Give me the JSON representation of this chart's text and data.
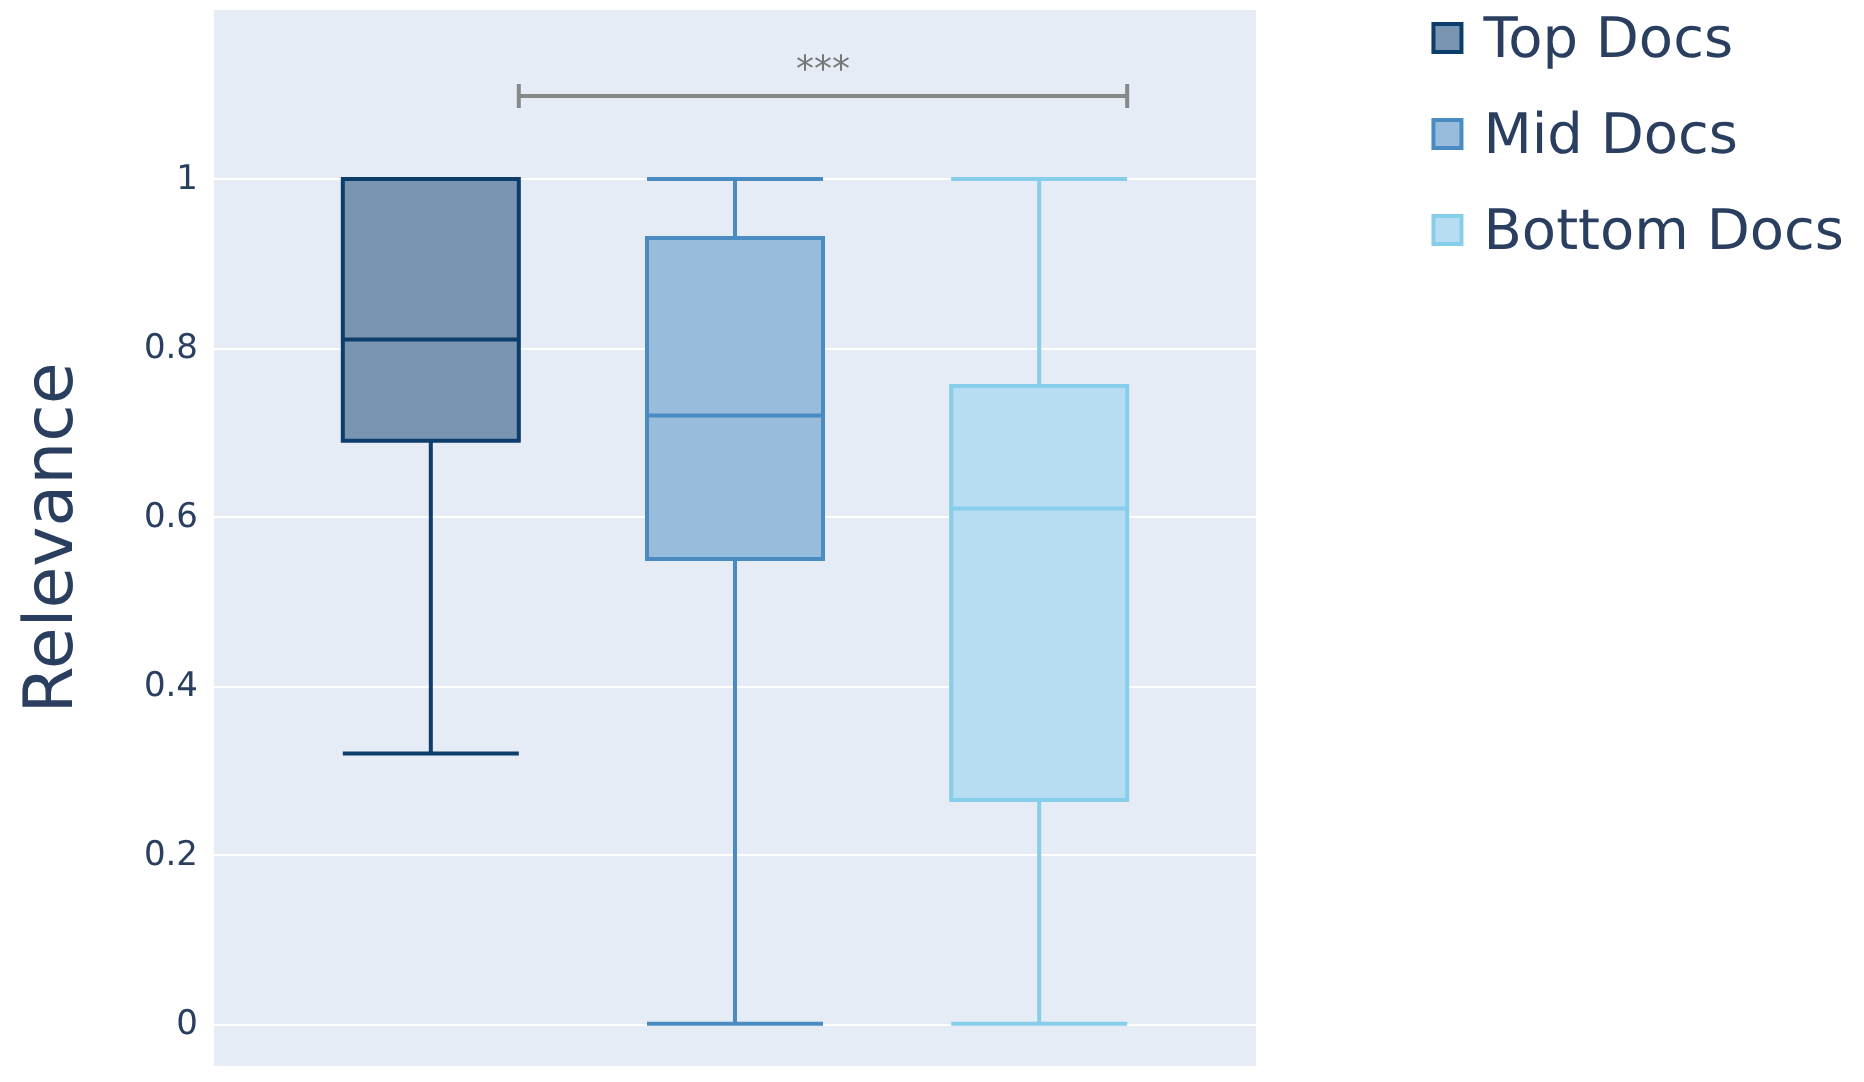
{
  "chart_data": {
    "type": "box",
    "ylabel": "Relevance",
    "categories": [
      null
    ],
    "series": [
      {
        "name": "Top Docs",
        "color": "#0d3d6b",
        "boxes": [
          {
            "low": 0.32,
            "q1": 0.69,
            "median": 0.81,
            "q3": 1.0,
            "high": 1.0
          }
        ]
      },
      {
        "name": "Mid Docs",
        "color": "#4a8cc2",
        "boxes": [
          {
            "low": 0,
            "q1": 0.55,
            "median": 0.72,
            "q3": 0.93,
            "high": 1.0
          }
        ]
      },
      {
        "name": "Bottom Docs",
        "color": "#87ceeb",
        "boxes": [
          {
            "low": 0,
            "q1": 0.265,
            "median": 0.61,
            "q3": 0.755,
            "high": 1.0
          }
        ]
      }
    ],
    "ylim": [
      -0.05,
      1.2
    ],
    "yticks": [
      0,
      0.2,
      0.4,
      0.6,
      0.8,
      1
    ],
    "grid": "y",
    "legend": "top right",
    "annotations": [
      "***"
    ]
  }
}
